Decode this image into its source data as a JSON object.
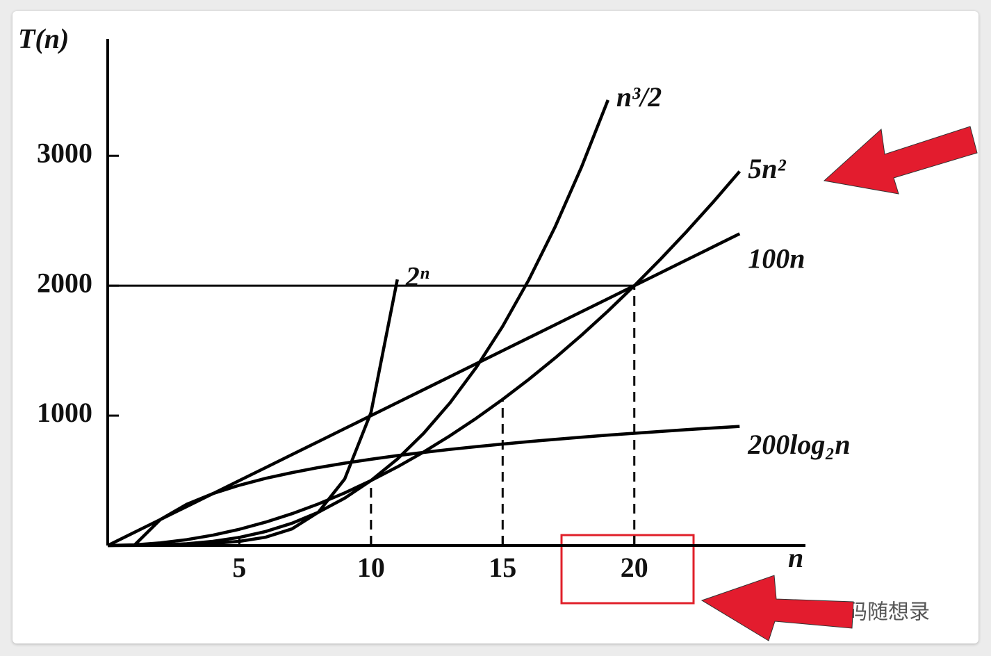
{
  "chart_data": {
    "type": "line",
    "y_label": "T(n)",
    "x_label": "n",
    "x": [
      0,
      1,
      2,
      3,
      4,
      5,
      6,
      7,
      8,
      9,
      10,
      11,
      12,
      13,
      14,
      15,
      16,
      17,
      18,
      19,
      20,
      21,
      22,
      23,
      24
    ],
    "series": [
      {
        "name": "2ⁿ",
        "color": "#000000",
        "values": [
          1,
          2,
          4,
          8,
          16,
          32,
          64,
          128,
          256,
          512,
          1024,
          2048,
          null,
          null,
          null,
          null,
          null,
          null,
          null,
          null,
          null,
          null,
          null,
          null,
          null
        ]
      },
      {
        "name": "n³/2",
        "color": "#000000",
        "values": [
          0,
          0.5,
          4,
          13.5,
          32,
          62.5,
          108,
          171.5,
          256,
          364.5,
          500,
          665.5,
          864,
          1098.5,
          1372,
          1687.5,
          2048,
          2456.5,
          2916,
          3429.5,
          null,
          null,
          null,
          null,
          null
        ]
      },
      {
        "name": "5n²",
        "color": "#000000",
        "values": [
          0,
          5,
          20,
          45,
          80,
          125,
          180,
          245,
          320,
          405,
          500,
          605,
          720,
          845,
          980,
          1125,
          1280,
          1445,
          1620,
          1805,
          2000,
          2205,
          2420,
          2645,
          2880
        ]
      },
      {
        "name": "100n",
        "color": "#000000",
        "values": [
          0,
          100,
          200,
          300,
          400,
          500,
          600,
          700,
          800,
          900,
          1000,
          1100,
          1200,
          1300,
          1400,
          1500,
          1600,
          1700,
          1800,
          1900,
          2000,
          2100,
          2200,
          2300,
          2400
        ]
      },
      {
        "name": "200log₂n",
        "color": "#000000",
        "values": [
          null,
          0,
          200,
          317,
          400,
          464,
          517,
          561,
          600,
          634,
          664,
          692,
          717,
          740,
          761,
          781,
          800,
          817,
          834,
          850,
          864,
          878,
          892,
          905,
          917
        ]
      }
    ],
    "xlim": [
      0,
      26.5
    ],
    "ylim": [
      0,
      3900
    ],
    "xticks": [
      5,
      10,
      15,
      20
    ],
    "yticks": [
      1000,
      2000,
      3000
    ],
    "hlines": [
      2000
    ],
    "vlines": [
      10,
      15,
      20
    ]
  },
  "watermark": "代码随想录"
}
